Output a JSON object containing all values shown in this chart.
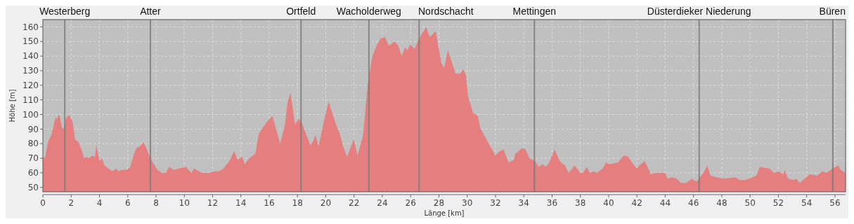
{
  "chart_data": {
    "type": "area",
    "xlabel": "Länge [km]",
    "ylabel": "Höhe [m]",
    "color": "#e87878",
    "x": [
      0,
      0.18,
      0.35,
      0.6,
      0.9,
      1.0,
      1.15,
      1.35,
      1.47,
      1.63,
      1.85,
      2.1,
      2.27,
      2.52,
      2.77,
      2.9,
      3.07,
      3.27,
      3.52,
      3.68,
      3.77,
      4.02,
      4.18,
      4.35,
      4.93,
      5.18,
      5.35,
      5.52,
      5.93,
      6.18,
      6.35,
      6.6,
      6.85,
      7.13,
      7.6,
      7.85,
      8.1,
      8.43,
      8.68,
      8.93,
      9.27,
      9.6,
      10.1,
      10.5,
      10.68,
      11.27,
      11.77,
      12.1,
      12.43,
      12.77,
      12.93,
      13.18,
      13.52,
      13.77,
      14.1,
      14.27,
      14.6,
      15.02,
      15.27,
      15.77,
      16.23,
      16.77,
      17.1,
      17.3,
      17.5,
      17.83,
      18.08,
      18.33,
      18.58,
      18.91,
      19.08,
      19.27,
      19.49,
      19.82,
      20.2,
      20.65,
      20.98,
      21.23,
      21.51,
      21.97,
      22.25,
      22.64,
      22.97,
      23.3,
      23.63,
      23.88,
      24.18,
      24.46,
      24.87,
      25.12,
      25.37,
      25.61,
      25.78,
      25.95,
      26.28,
      26.61,
      27.1,
      27.35,
      27.77,
      28.18,
      28.38,
      28.63,
      29.18,
      29.51,
      29.72,
      29.92,
      30.05,
      30.42,
      30.75,
      30.91,
      31.41,
      31.99,
      32.32,
      32.57,
      32.93,
      33.31,
      33.4,
      33.89,
      34.14,
      34.39,
      34.8,
      35.05,
      35.3,
      35.55,
      35.8,
      36.18,
      36.54,
      36.91,
      37.17,
      37.59,
      38,
      38.17,
      38.46,
      38.66,
      38.96,
      39.16,
      39.58,
      39.82,
      40.07,
      40.65,
      41.07,
      41.4,
      41.65,
      41.98,
      42.15,
      42.56,
      42.99,
      43.24,
      43.97,
      44.17,
      44.47,
      44.8,
      45.13,
      45.46,
      45.88,
      46.21,
      46.46,
      46.7,
      46.98,
      47.2,
      47.61,
      48.11,
      48.95,
      49.28,
      49.61,
      49.94,
      50.44,
      50.69,
      51.36,
      51.69,
      52.02,
      52.35,
      52.46,
      52.68,
      53.09,
      53.26,
      53.51,
      54.22,
      54.75,
      55.08,
      55.41,
      55.83,
      56.24,
      56.41,
      56.74
    ],
    "values": [
      70,
      71,
      81,
      86,
      98,
      97,
      100,
      91,
      90,
      97,
      100,
      95,
      83,
      81,
      75,
      70,
      71,
      70,
      72,
      71,
      79,
      68,
      70,
      65,
      61,
      63,
      61,
      62,
      62,
      64,
      70,
      77,
      78,
      81,
      70,
      66,
      62,
      60,
      60,
      64,
      62,
      63,
      64,
      60,
      63,
      60,
      60,
      61,
      61,
      63,
      65,
      68,
      75,
      69,
      71,
      66,
      70,
      73,
      87,
      94,
      99,
      80,
      92,
      108,
      115,
      93,
      97,
      94,
      87,
      79,
      81,
      86,
      78,
      93,
      109,
      95,
      87,
      78,
      71,
      83,
      72,
      86,
      121,
      140,
      148,
      152,
      153,
      147,
      150,
      147,
      140,
      146,
      144,
      148,
      145,
      152,
      160,
      153,
      157,
      135,
      132,
      144,
      128,
      128,
      131,
      127,
      113,
      101,
      99,
      91,
      82,
      72,
      75,
      76,
      67,
      69,
      73,
      77,
      76,
      70,
      68,
      64,
      66,
      64,
      67,
      76,
      68,
      65,
      60,
      65,
      60,
      60,
      64,
      60,
      61,
      60,
      63,
      67,
      66,
      67,
      72,
      71,
      67,
      63,
      65,
      68,
      59,
      60,
      60,
      56,
      57,
      56,
      53,
      53,
      56,
      54,
      57,
      60,
      65,
      58,
      57,
      56,
      57,
      55,
      55,
      56,
      58,
      64,
      63,
      60,
      61,
      59,
      62,
      56,
      55,
      56,
      53,
      59,
      58,
      61,
      60,
      63,
      65,
      62,
      60
    ],
    "xlim": [
      0,
      56.75
    ],
    "ylim": [
      47,
      165
    ],
    "xticks": [
      0,
      2,
      4,
      6,
      8,
      10,
      12,
      14,
      16,
      18,
      20,
      22,
      24,
      26,
      28,
      30,
      32,
      34,
      36,
      38,
      40,
      42,
      44,
      46,
      48,
      50,
      52,
      54,
      56
    ],
    "yticks": [
      50,
      60,
      70,
      80,
      90,
      100,
      110,
      120,
      130,
      140,
      150,
      160
    ],
    "grid": true,
    "ref_lines": [
      {
        "axis": "x",
        "value": 1.55,
        "label": "Westerberg",
        "color": "#7a7a7a"
      },
      {
        "axis": "x",
        "value": 7.6,
        "label": "Atter",
        "color": "#7a7a7a"
      },
      {
        "axis": "x",
        "value": 18.25,
        "label": "Ortfeld",
        "color": "#7a7a7a"
      },
      {
        "axis": "x",
        "value": 23.05,
        "label": "Wacholderweg",
        "color": "#7a7a7a"
      },
      {
        "axis": "x",
        "value": 26.6,
        "label": "Nordschacht",
        "color": "#7a7a7a"
      },
      {
        "axis": "x",
        "value": 34.75,
        "label": "Mettingen",
        "color": "#7a7a7a"
      },
      {
        "axis": "x",
        "value": 46.4,
        "label": "Düsterdieker Niederung",
        "color": "#7a7a7a"
      },
      {
        "axis": "x",
        "value": 55.85,
        "label": "Büren",
        "color": "#7a7a7a"
      }
    ]
  }
}
